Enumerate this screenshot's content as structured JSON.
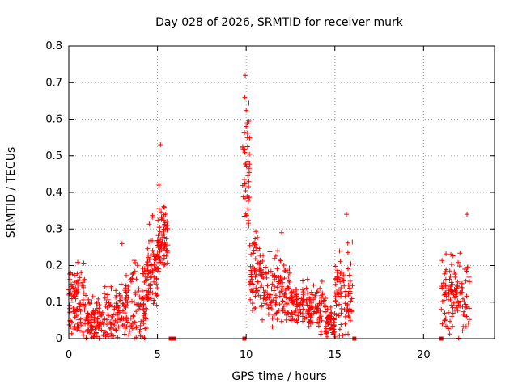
{
  "chart_data": {
    "type": "scatter",
    "title": "Day 028 of 2026, SRMTID for receiver murk",
    "xlabel": "GPS time / hours",
    "ylabel": "SRMTID / TECUs",
    "xlim": [
      0,
      24
    ],
    "ylim": [
      0,
      0.8
    ],
    "xticks": [
      0,
      5,
      10,
      15,
      20
    ],
    "xtick_labels": [
      "0",
      "5",
      "10",
      "15",
      "20"
    ],
    "yticks": [
      0,
      0.1,
      0.2,
      0.3,
      0.4,
      0.5,
      0.6,
      0.7,
      0.8
    ],
    "ytick_labels": [
      "0",
      "0.1",
      "0.2",
      "0.3",
      "0.4",
      "0.5",
      "0.6",
      "0.7",
      "0.8"
    ],
    "grid": true,
    "marker": "plus",
    "color": "#ff0000",
    "segments": [
      {
        "t0": 0.0,
        "t1": 0.9,
        "base": 0.09,
        "spread": 0.1,
        "n": 90
      },
      {
        "t0": 0.9,
        "t1": 2.0,
        "base": 0.05,
        "spread": 0.07,
        "n": 90
      },
      {
        "t0": 2.0,
        "t1": 3.5,
        "base": 0.07,
        "spread": 0.09,
        "n": 110
      },
      {
        "t0": 3.5,
        "t1": 4.4,
        "base": 0.1,
        "spread": 0.12,
        "n": 80
      },
      {
        "t0": 4.4,
        "t1": 5.0,
        "base": 0.18,
        "spread": 0.12,
        "n": 70
      },
      {
        "t0": 5.0,
        "t1": 5.6,
        "base": 0.27,
        "spread": 0.08,
        "n": 80
      },
      {
        "t0": 9.8,
        "t1": 10.2,
        "base": 0.48,
        "spread": 0.18,
        "n": 45
      },
      {
        "t0": 10.2,
        "t1": 11.0,
        "base": 0.18,
        "spread": 0.12,
        "n": 80
      },
      {
        "t0": 11.0,
        "t1": 12.5,
        "base": 0.13,
        "spread": 0.1,
        "n": 110
      },
      {
        "t0": 12.5,
        "t1": 14.5,
        "base": 0.09,
        "spread": 0.06,
        "n": 150
      },
      {
        "t0": 14.5,
        "t1": 15.0,
        "base": 0.04,
        "spread": 0.04,
        "n": 50
      },
      {
        "t0": 15.0,
        "t1": 16.0,
        "base": 0.12,
        "spread": 0.12,
        "n": 80
      },
      {
        "t0": 21.0,
        "t1": 22.6,
        "base": 0.12,
        "spread": 0.1,
        "n": 120
      }
    ],
    "highlights": [
      {
        "x": 5.17,
        "y": 0.53
      },
      {
        "x": 9.95,
        "y": 0.72
      },
      {
        "x": 9.92,
        "y": 0.66
      },
      {
        "x": 10.0,
        "y": 0.58
      },
      {
        "x": 5.08,
        "y": 0.42
      },
      {
        "x": 15.65,
        "y": 0.34
      },
      {
        "x": 22.45,
        "y": 0.34
      },
      {
        "x": 3.0,
        "y": 0.26
      },
      {
        "x": 12.0,
        "y": 0.29
      }
    ],
    "zero_markers": [
      5.75,
      5.85,
      5.95,
      9.9,
      16.1,
      21.0
    ]
  }
}
